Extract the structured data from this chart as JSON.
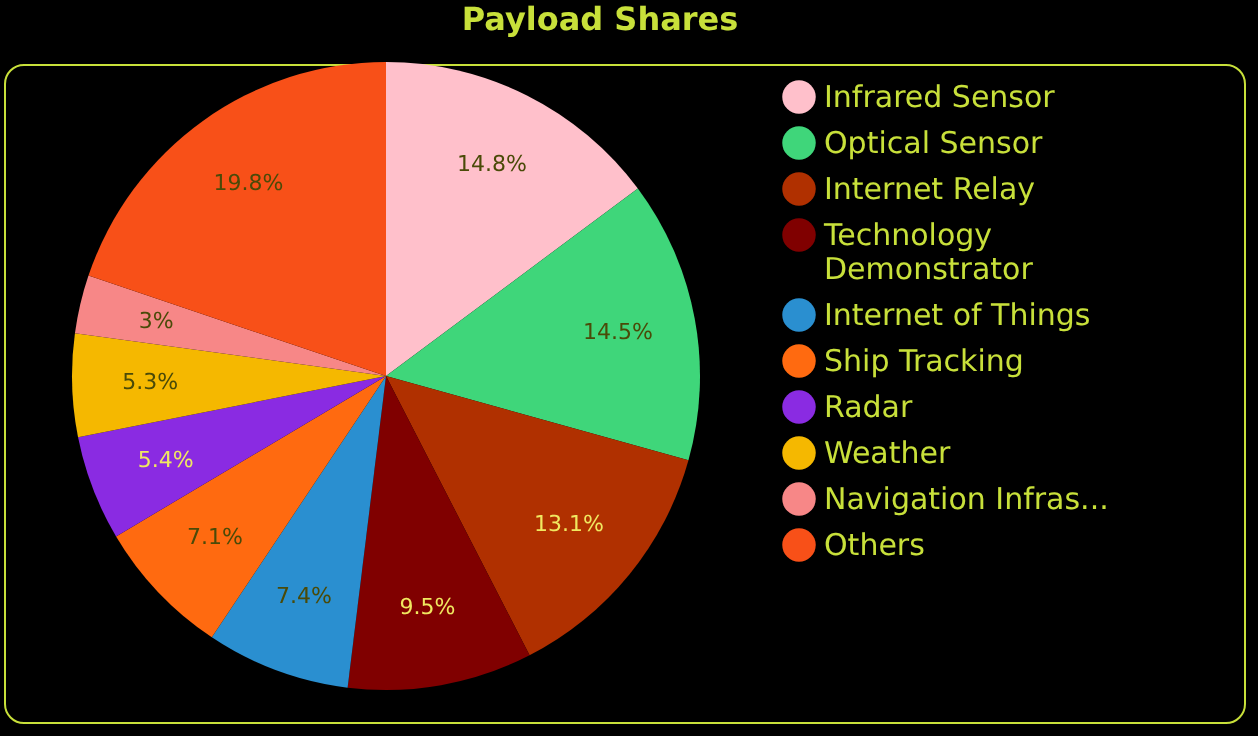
{
  "chart_data": {
    "type": "pie",
    "title": "Payload Shares",
    "categories": [
      "Infrared Sensor",
      "Optical Sensor",
      "Internet Relay",
      "Technology Demonstrator",
      "Internet of Things",
      "Ship Tracking",
      "Radar",
      "Weather",
      "Navigation Infras...",
      "Others"
    ],
    "values": [
      14.8,
      14.5,
      13.1,
      9.5,
      7.4,
      7.1,
      5.4,
      5.3,
      3,
      19.8
    ],
    "colors": [
      "#ffc0cb",
      "#3fd67a",
      "#b03000",
      "#800000",
      "#2a8fd0",
      "#ff6a10",
      "#8a2be2",
      "#f5b800",
      "#f78787",
      "#f85018"
    ],
    "value_labels": [
      "14.8%",
      "14.5%",
      "13.1%",
      "9.5%",
      "7.4%",
      "7.1%",
      "5.4%",
      "5.3%",
      "3%",
      "19.8%"
    ],
    "legend": "right"
  }
}
